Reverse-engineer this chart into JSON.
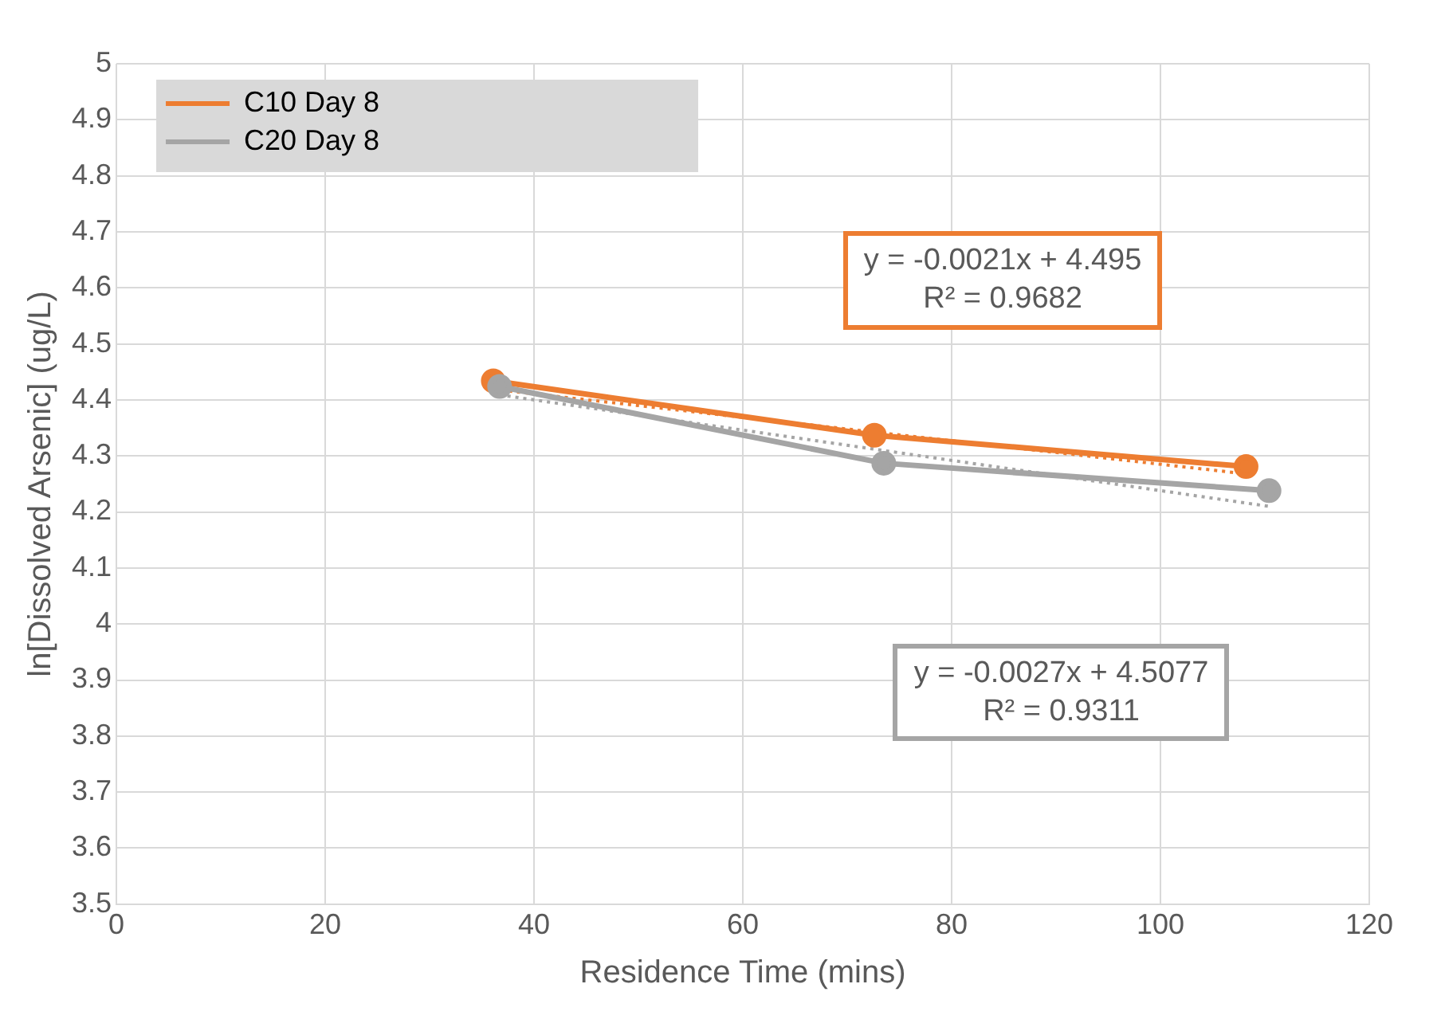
{
  "chart_data": {
    "type": "line",
    "xlabel": "Residence Time (mins)",
    "ylabel": "ln[Dissolved Arsenic] (ug/L)",
    "xlim": [
      0,
      120
    ],
    "xticks": [
      0,
      20,
      40,
      60,
      80,
      100,
      120
    ],
    "ylim": [
      3.5,
      5
    ],
    "yticks": [
      3.5,
      3.6,
      3.7,
      3.8,
      3.9,
      4,
      4.1,
      4.2,
      4.3,
      4.4,
      4.5,
      4.6,
      4.7,
      4.8,
      4.9,
      5
    ],
    "grid": true,
    "legend": "top left",
    "marker": "circle",
    "series": [
      {
        "name": "C10 Day 8",
        "color": "#ed7d31",
        "x": [
          36.1,
          72.6,
          108.2
        ],
        "values": [
          4.434,
          4.337,
          4.281
        ]
      },
      {
        "name": "C20 Day 8",
        "color": "#a5a5a5",
        "x": [
          36.7,
          73.5,
          110.4
        ],
        "values": [
          4.424,
          4.287,
          4.238
        ]
      },
      {
        "type": "line",
        "color": "#ed7d31",
        "line_style": "dotted",
        "marker": "none",
        "x": [
          36.1,
          108.2
        ],
        "values": [
          4.419,
          4.268
        ]
      },
      {
        "type": "line",
        "color": "#a5a5a5",
        "line_style": "dotted",
        "marker": "none",
        "x": [
          36.7,
          110.4
        ],
        "values": [
          4.409,
          4.21
        ]
      }
    ],
    "annotations": [
      "y = -0.0021x + 4.495\nR² = 0.9682",
      "y = -0.0027x + 4.5077\nR² = 0.9311"
    ]
  }
}
